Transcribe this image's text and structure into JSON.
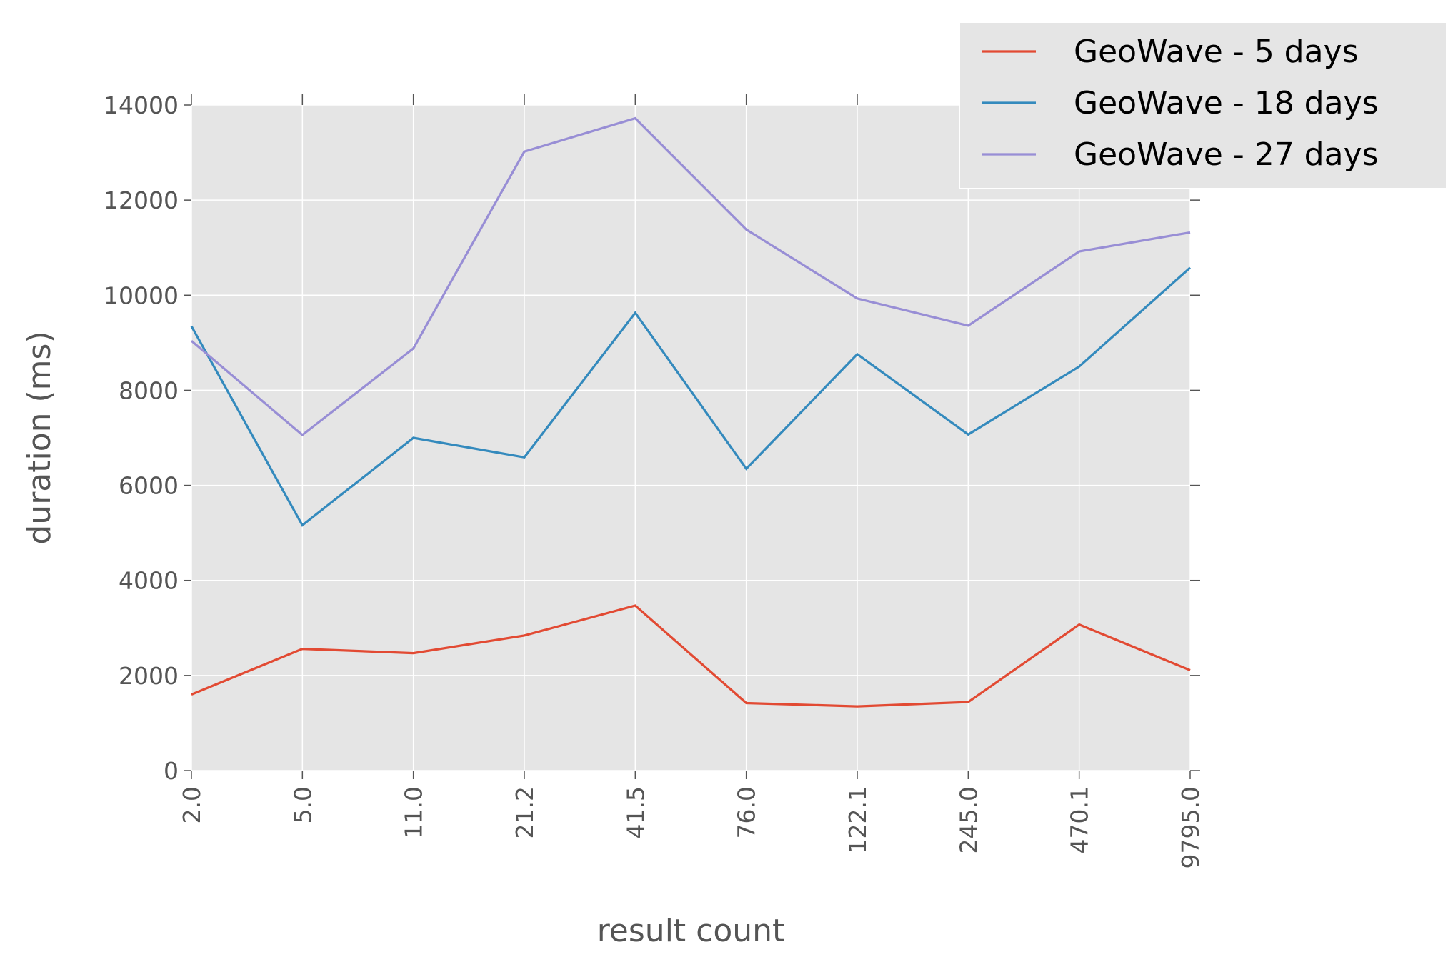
{
  "chart_data": {
    "type": "line",
    "categories": [
      "2.0",
      "5.0",
      "11.0",
      "21.2",
      "41.5",
      "76.0",
      "122.1",
      "245.0",
      "470.1",
      "9795.0"
    ],
    "series": [
      {
        "name": "GeoWave - 5 days",
        "color": "#e24a33",
        "values": [
          1600,
          2560,
          2470,
          2840,
          3470,
          1420,
          1350,
          1440,
          3070,
          2110
        ]
      },
      {
        "name": "GeoWave - 18 days",
        "color": "#348abd",
        "values": [
          9350,
          5160,
          7000,
          6590,
          9630,
          6350,
          8760,
          7070,
          8500,
          10580
        ]
      },
      {
        "name": "GeoWave - 27 days",
        "color": "#988ed5",
        "values": [
          9040,
          7060,
          8880,
          13020,
          13720,
          11380,
          9930,
          9360,
          10920,
          11320
        ]
      }
    ],
    "xlabel": "result count",
    "ylabel": "duration (ms)",
    "ylim": [
      0,
      14000
    ],
    "yticks": [
      0,
      2000,
      4000,
      6000,
      8000,
      10000,
      12000,
      14000
    ],
    "grid": true,
    "legend_position": "top-right",
    "background": "#e5e5e5"
  }
}
